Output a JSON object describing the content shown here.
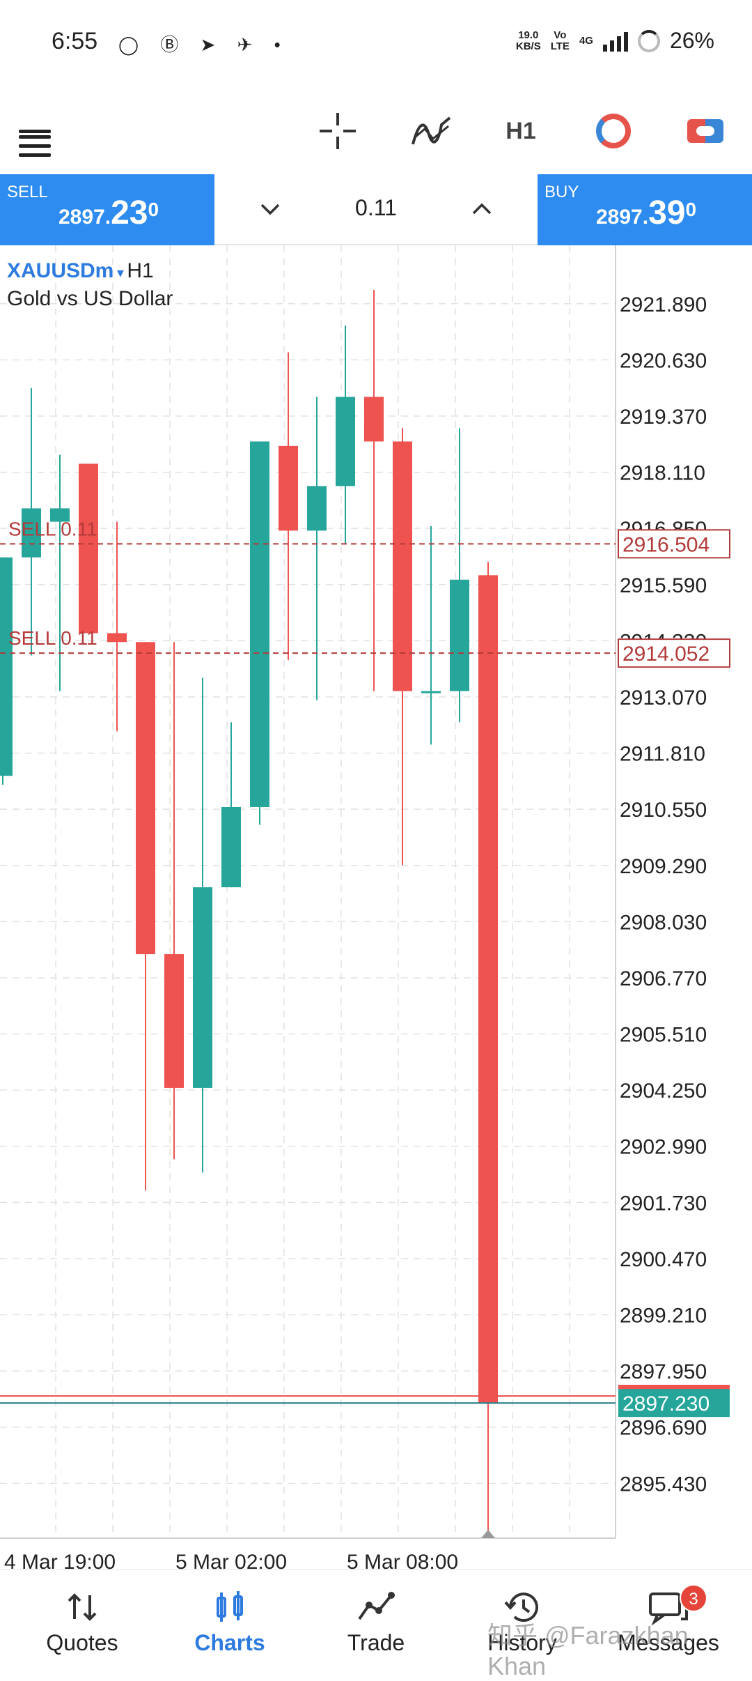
{
  "status_bar": {
    "time": "6:55",
    "apps": "◯ Ⓑ ➤ ✈ •",
    "net_speed_top": "19.0",
    "net_speed_bottom": "KB/S",
    "volte_top": "Vo",
    "volte_bottom": "LTE",
    "network": "4G",
    "battery": "26%"
  },
  "toolbar": {
    "menu_icon": "hamburger-icon",
    "crosshair_icon": "crosshair-icon",
    "indicators_icon": "indicators-icon",
    "indicators_glyph": "〰",
    "timeframe": "H1",
    "account_icon": "ring-icon",
    "trade_icon": "new-order-icon"
  },
  "order_bar": {
    "sell_label": "SELL",
    "sell_price_main": "2897.",
    "sell_price_big": "23",
    "sell_price_sup": "0",
    "buy_label": "BUY",
    "buy_price_main": "2897.",
    "buy_price_big": "39",
    "buy_price_sup": "0",
    "volume": "0.11",
    "down_glyph": "⌄",
    "up_glyph": "⌃",
    "colors": {
      "side_bg": "#2e8cf0"
    }
  },
  "chart_header": {
    "symbol": "XAUUSDm",
    "dropdown_glyph": "▾",
    "timeframe": "H1",
    "description": "Gold vs US Dollar"
  },
  "chart_data": {
    "type": "candlestick",
    "ylim": [
      2894.2,
      2923.2
    ],
    "y_ticks": [
      "2921.890",
      "2920.630",
      "2919.370",
      "2918.110",
      "2916.850",
      "2915.590",
      "2914.330",
      "2913.070",
      "2911.810",
      "2910.550",
      "2909.290",
      "2908.030",
      "2906.770",
      "2905.510",
      "2904.250",
      "2902.990",
      "2901.730",
      "2900.470",
      "2899.210",
      "2897.950",
      "2896.690",
      "2895.430"
    ],
    "x_labels": [
      {
        "index": 0,
        "label": "4 Mar 19:00"
      },
      {
        "index": 6,
        "label": "5 Mar 02:00"
      },
      {
        "index": 12,
        "label": "5 Mar 08:00"
      }
    ],
    "candles": [
      {
        "o": 2911.3,
        "h": 2916.2,
        "l": 2911.1,
        "c": 2916.2
      },
      {
        "o": 2916.2,
        "h": 2920.0,
        "l": 2914.0,
        "c": 2917.3
      },
      {
        "o": 2917.0,
        "h": 2918.5,
        "l": 2913.2,
        "c": 2917.3
      },
      {
        "o": 2918.3,
        "h": 2918.3,
        "l": 2914.5,
        "c": 2914.5
      },
      {
        "o": 2914.5,
        "h": 2917.0,
        "l": 2912.3,
        "c": 2914.3
      },
      {
        "o": 2914.3,
        "h": 2914.3,
        "l": 2902.0,
        "c": 2907.3
      },
      {
        "o": 2907.3,
        "h": 2914.3,
        "l": 2902.7,
        "c": 2904.3
      },
      {
        "o": 2904.3,
        "h": 2913.5,
        "l": 2902.4,
        "c": 2908.8
      },
      {
        "o": 2908.8,
        "h": 2912.5,
        "l": 2908.8,
        "c": 2910.6
      },
      {
        "o": 2910.6,
        "h": 2918.8,
        "l": 2910.2,
        "c": 2918.8
      },
      {
        "o": 2918.7,
        "h": 2920.8,
        "l": 2913.9,
        "c": 2916.8
      },
      {
        "o": 2916.8,
        "h": 2919.8,
        "l": 2913.0,
        "c": 2917.8
      },
      {
        "o": 2917.8,
        "h": 2921.4,
        "l": 2916.5,
        "c": 2919.8
      },
      {
        "o": 2919.8,
        "h": 2922.2,
        "l": 2913.2,
        "c": 2918.8
      },
      {
        "o": 2918.8,
        "h": 2919.1,
        "l": 2909.3,
        "c": 2913.2
      },
      {
        "o": 2913.2,
        "h": 2916.9,
        "l": 2912.0,
        "c": 2913.2
      },
      {
        "o": 2913.2,
        "h": 2919.1,
        "l": 2912.5,
        "c": 2915.7
      },
      {
        "o": 2915.8,
        "h": 2916.1,
        "l": 2894.2,
        "c": 2897.23
      }
    ],
    "orders": [
      {
        "label": "SELL 0.11",
        "price": 2916.504,
        "price_label": "2916.504"
      },
      {
        "label": "SELL 0.11",
        "price": 2914.052,
        "price_label": "2914.052"
      }
    ],
    "bid": {
      "price": 2897.23,
      "label": "2897.230"
    },
    "ask": {
      "price": 2897.39
    },
    "grid": true,
    "colors": {
      "up": "#26a69a",
      "down": "#ef5350",
      "order": "#b33a3a",
      "grid": "#e2e2e2"
    }
  },
  "bottom_nav": {
    "items": [
      {
        "label": "Quotes",
        "icon": "⇅"
      },
      {
        "label": "Charts",
        "icon": "⫾⫾"
      },
      {
        "label": "Trade",
        "icon": "⟋"
      },
      {
        "label": "History",
        "icon": "↺"
      },
      {
        "label": "Messages",
        "icon": "▭"
      }
    ],
    "messages_badge": "3"
  },
  "watermark": "知乎 @Farazkhan Khan"
}
